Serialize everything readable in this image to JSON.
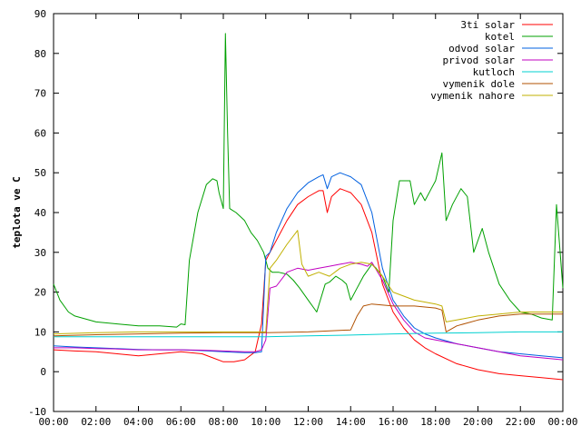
{
  "chart_data": {
    "type": "line",
    "title": "",
    "xlabel": "",
    "ylabel": "teplota ve C",
    "xlim": [
      0,
      24
    ],
    "ylim": [
      -10,
      90
    ],
    "grid": false,
    "legend_position": "top-right",
    "x_tick_labels": [
      "00:00",
      "02:00",
      "04:00",
      "06:00",
      "08:00",
      "10:00",
      "12:00",
      "14:00",
      "16:00",
      "18:00",
      "20:00",
      "22:00",
      "00:00"
    ],
    "y_tick_labels": [
      "-10",
      "0",
      "10",
      "20",
      "30",
      "40",
      "50",
      "60",
      "70",
      "80",
      "90"
    ],
    "series": [
      {
        "name": "3ti solar",
        "color": "#ff0000",
        "points": [
          [
            0,
            5.5
          ],
          [
            1,
            5.2
          ],
          [
            2,
            5.0
          ],
          [
            3,
            4.5
          ],
          [
            4,
            4.0
          ],
          [
            5,
            4.5
          ],
          [
            6,
            5.0
          ],
          [
            7,
            4.5
          ],
          [
            7.5,
            3.5
          ],
          [
            8,
            2.5
          ],
          [
            8.5,
            2.5
          ],
          [
            9,
            3.0
          ],
          [
            9.5,
            5.0
          ],
          [
            9.8,
            12.0
          ],
          [
            10,
            28.0
          ],
          [
            10.2,
            30.0
          ],
          [
            10.5,
            33.0
          ],
          [
            11,
            38.0
          ],
          [
            11.5,
            42.0
          ],
          [
            12,
            44.0
          ],
          [
            12.5,
            45.5
          ],
          [
            12.7,
            45.5
          ],
          [
            12.9,
            40.0
          ],
          [
            13.1,
            44.0
          ],
          [
            13.5,
            46.0
          ],
          [
            14,
            45.0
          ],
          [
            14.5,
            42.0
          ],
          [
            15,
            35.0
          ],
          [
            15.5,
            22.0
          ],
          [
            16,
            15.0
          ],
          [
            16.5,
            11.0
          ],
          [
            17,
            8.0
          ],
          [
            17.5,
            6.0
          ],
          [
            18,
            4.5
          ],
          [
            19,
            2.0
          ],
          [
            20,
            0.5
          ],
          [
            21,
            -0.5
          ],
          [
            22,
            -1.0
          ],
          [
            23,
            -1.5
          ],
          [
            24,
            -2.0
          ]
        ]
      },
      {
        "name": "kotel",
        "color": "#00a000",
        "points": [
          [
            0,
            22.0
          ],
          [
            0.3,
            18.0
          ],
          [
            0.7,
            15.0
          ],
          [
            1,
            14.0
          ],
          [
            2,
            12.5
          ],
          [
            3,
            12.0
          ],
          [
            4,
            11.5
          ],
          [
            5,
            11.5
          ],
          [
            5.8,
            11.2
          ],
          [
            6,
            12.0
          ],
          [
            6.2,
            11.8
          ],
          [
            6.4,
            28.0
          ],
          [
            6.8,
            40.0
          ],
          [
            7.2,
            47.0
          ],
          [
            7.5,
            48.5
          ],
          [
            7.7,
            48.0
          ],
          [
            7.8,
            45.0
          ],
          [
            8,
            41.0
          ],
          [
            8.1,
            85.0
          ],
          [
            8.2,
            60.0
          ],
          [
            8.3,
            41.0
          ],
          [
            8.6,
            40.0
          ],
          [
            9,
            38.0
          ],
          [
            9.3,
            35.0
          ],
          [
            9.6,
            33.0
          ],
          [
            9.9,
            30.0
          ],
          [
            10.1,
            26.0
          ],
          [
            10.3,
            25.0
          ],
          [
            10.6,
            25.0
          ],
          [
            11,
            24.5
          ],
          [
            11.3,
            23.0
          ],
          [
            11.6,
            21.0
          ],
          [
            12,
            18.0
          ],
          [
            12.4,
            15.0
          ],
          [
            12.8,
            22.0
          ],
          [
            13,
            22.5
          ],
          [
            13.3,
            24.0
          ],
          [
            13.6,
            23.0
          ],
          [
            13.8,
            22.0
          ],
          [
            14,
            18.0
          ],
          [
            14.3,
            21.0
          ],
          [
            14.6,
            24.0
          ],
          [
            15,
            27.0
          ],
          [
            15.2,
            26.0
          ],
          [
            15.5,
            24.0
          ],
          [
            15.8,
            20.0
          ],
          [
            16,
            38.0
          ],
          [
            16.3,
            48.0
          ],
          [
            16.8,
            48.0
          ],
          [
            17,
            42.0
          ],
          [
            17.3,
            45.0
          ],
          [
            17.5,
            43.0
          ],
          [
            17.8,
            46.0
          ],
          [
            18,
            48.0
          ],
          [
            18.3,
            55.0
          ],
          [
            18.5,
            38.0
          ],
          [
            18.8,
            42.0
          ],
          [
            19.2,
            46.0
          ],
          [
            19.5,
            44.0
          ],
          [
            19.8,
            30.0
          ],
          [
            20.2,
            36.0
          ],
          [
            20.5,
            30.0
          ],
          [
            21,
            22.0
          ],
          [
            21.5,
            18.0
          ],
          [
            22,
            15.0
          ],
          [
            22.5,
            14.5
          ],
          [
            23,
            13.5
          ],
          [
            23.5,
            13.0
          ],
          [
            23.7,
            42.0
          ],
          [
            24,
            21.0
          ]
        ]
      },
      {
        "name": "odvod solar",
        "color": "#0060e0",
        "points": [
          [
            0,
            6.5
          ],
          [
            1,
            6.2
          ],
          [
            2,
            6.0
          ],
          [
            3,
            5.8
          ],
          [
            4,
            5.6
          ],
          [
            5,
            5.5
          ],
          [
            6,
            5.5
          ],
          [
            7,
            5.3
          ],
          [
            8,
            5.0
          ],
          [
            9,
            4.8
          ],
          [
            9.5,
            4.8
          ],
          [
            9.8,
            5.0
          ],
          [
            10,
            29.0
          ],
          [
            10.2,
            30.0
          ],
          [
            10.5,
            35.0
          ],
          [
            11,
            41.0
          ],
          [
            11.5,
            45.0
          ],
          [
            12,
            47.5
          ],
          [
            12.5,
            49.0
          ],
          [
            12.7,
            49.5
          ],
          [
            12.9,
            46.0
          ],
          [
            13.1,
            49.0
          ],
          [
            13.5,
            50.0
          ],
          [
            14,
            49.0
          ],
          [
            14.5,
            47.0
          ],
          [
            15,
            40.0
          ],
          [
            15.5,
            26.0
          ],
          [
            16,
            18.0
          ],
          [
            16.5,
            14.0
          ],
          [
            17,
            11.0
          ],
          [
            17.5,
            9.5
          ],
          [
            18,
            8.5
          ],
          [
            19,
            7.0
          ],
          [
            20,
            6.0
          ],
          [
            21,
            5.0
          ],
          [
            22,
            4.5
          ],
          [
            23,
            4.0
          ],
          [
            24,
            3.5
          ]
        ]
      },
      {
        "name": "privod solar",
        "color": "#c000c0",
        "points": [
          [
            0,
            6.0
          ],
          [
            1,
            6.0
          ],
          [
            2,
            5.8
          ],
          [
            3,
            5.7
          ],
          [
            4,
            5.5
          ],
          [
            5,
            5.5
          ],
          [
            6,
            5.5
          ],
          [
            7,
            5.4
          ],
          [
            8,
            5.2
          ],
          [
            9,
            5.0
          ],
          [
            9.5,
            5.0
          ],
          [
            9.8,
            5.5
          ],
          [
            10,
            8.0
          ],
          [
            10.2,
            21.0
          ],
          [
            10.5,
            21.5
          ],
          [
            11,
            25.0
          ],
          [
            11.5,
            26.0
          ],
          [
            12,
            25.5
          ],
          [
            12.5,
            26.0
          ],
          [
            13,
            26.5
          ],
          [
            13.5,
            27.0
          ],
          [
            14,
            27.5
          ],
          [
            14.5,
            27.0
          ],
          [
            14.8,
            26.5
          ],
          [
            15,
            27.5
          ],
          [
            15.5,
            23.0
          ],
          [
            16,
            17.0
          ],
          [
            16.5,
            13.0
          ],
          [
            17,
            10.0
          ],
          [
            17.5,
            8.5
          ],
          [
            18,
            8.0
          ],
          [
            19,
            7.0
          ],
          [
            20,
            6.0
          ],
          [
            21,
            5.0
          ],
          [
            22,
            4.0
          ],
          [
            23,
            3.5
          ],
          [
            24,
            3.0
          ]
        ]
      },
      {
        "name": "kutloch",
        "color": "#00d0d0",
        "points": [
          [
            0,
            8.8
          ],
          [
            2,
            8.8
          ],
          [
            4,
            8.8
          ],
          [
            6,
            8.8
          ],
          [
            8,
            8.8
          ],
          [
            10,
            8.8
          ],
          [
            12,
            9.0
          ],
          [
            14,
            9.2
          ],
          [
            16,
            9.5
          ],
          [
            18,
            9.7
          ],
          [
            20,
            9.8
          ],
          [
            22,
            10.0
          ],
          [
            24,
            10.0
          ]
        ]
      },
      {
        "name": "vymenik dole",
        "color": "#b05000",
        "points": [
          [
            0,
            9.0
          ],
          [
            2,
            9.3
          ],
          [
            4,
            9.5
          ],
          [
            6,
            9.7
          ],
          [
            8,
            9.8
          ],
          [
            10,
            9.8
          ],
          [
            12,
            10.0
          ],
          [
            14,
            10.5
          ],
          [
            14.3,
            14.0
          ],
          [
            14.6,
            16.5
          ],
          [
            15,
            17.0
          ],
          [
            16,
            16.5
          ],
          [
            17,
            16.5
          ],
          [
            18,
            16.0
          ],
          [
            18.3,
            15.5
          ],
          [
            18.5,
            10.0
          ],
          [
            19,
            11.5
          ],
          [
            20,
            13.0
          ],
          [
            21,
            14.0
          ],
          [
            22,
            14.5
          ],
          [
            23,
            14.5
          ],
          [
            24,
            14.5
          ]
        ]
      },
      {
        "name": "vymenik nahore",
        "color": "#c0b000",
        "points": [
          [
            0,
            9.5
          ],
          [
            2,
            9.8
          ],
          [
            4,
            10.0
          ],
          [
            6,
            10.0
          ],
          [
            8,
            10.0
          ],
          [
            10,
            10.0
          ],
          [
            10.1,
            18.0
          ],
          [
            10.2,
            26.0
          ],
          [
            10.5,
            28.0
          ],
          [
            11,
            32.0
          ],
          [
            11.5,
            35.5
          ],
          [
            11.7,
            27.0
          ],
          [
            12,
            24.0
          ],
          [
            12.5,
            25.0
          ],
          [
            13,
            24.0
          ],
          [
            13.5,
            26.0
          ],
          [
            14,
            27.0
          ],
          [
            14.5,
            27.5
          ],
          [
            15,
            27.0
          ],
          [
            15.5,
            24.0
          ],
          [
            16,
            20.0
          ],
          [
            16.5,
            19.0
          ],
          [
            17,
            18.0
          ],
          [
            18,
            17.0
          ],
          [
            18.3,
            16.5
          ],
          [
            18.5,
            12.5
          ],
          [
            19,
            13.0
          ],
          [
            20,
            14.0
          ],
          [
            21,
            14.5
          ],
          [
            22,
            15.0
          ],
          [
            23,
            15.0
          ],
          [
            24,
            15.0
          ]
        ]
      }
    ]
  }
}
